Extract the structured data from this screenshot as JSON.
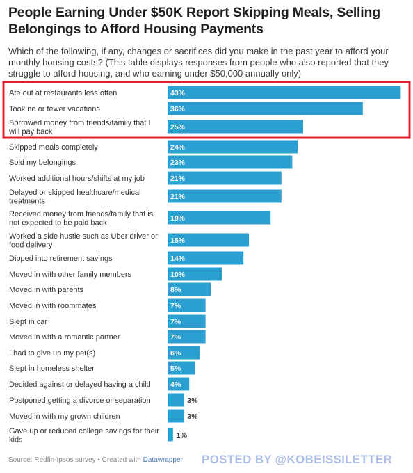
{
  "title": "People Earning Under $50K Report Skipping Meals, Selling Belongings to Afford Housing Payments",
  "subtitle": "Which of the following, if any, changes or sacrifices did you make in the past year to afford your monthly housing costs? (This table displays responses from people who also reported that they struggle to afford housing, and who earning under $50,000 annually only)",
  "footer": {
    "source": "Source: Redfin-Ipsos survey • Created with ",
    "tool": "Datawrapper"
  },
  "watermark": "POSTED BY @KOBEISSILETTER",
  "colors": {
    "bar": "#2b9fd0",
    "highlight_box": "#e0202a",
    "value_inside": "#ffffff",
    "value_outside": "#333333"
  },
  "chart_data": {
    "type": "bar",
    "orientation": "horizontal",
    "value_suffix": "%",
    "highlighted_rows": [
      0,
      1,
      2
    ],
    "categories": [
      [
        "Ate out at restaurants less often"
      ],
      [
        "Took no or fewer vacations"
      ],
      [
        "Borrowed money from friends/family that I",
        "will pay back"
      ],
      [
        "Skipped meals completely"
      ],
      [
        "Sold my belongings"
      ],
      [
        "Worked additional hours/shifts at my job"
      ],
      [
        "Delayed or skipped healthcare/medical",
        "treatments"
      ],
      [
        "Received money from friends/family that is",
        "not expected to be paid back"
      ],
      [
        "Worked a side hustle such as Uber driver or",
        "food delivery"
      ],
      [
        "Dipped into retirement savings"
      ],
      [
        "Moved in with other family members"
      ],
      [
        "Moved in with parents"
      ],
      [
        "Moved in with roommates"
      ],
      [
        "Slept in car"
      ],
      [
        "Moved in with a romantic partner"
      ],
      [
        "I had to give up my pet(s)"
      ],
      [
        "Slept in homeless shelter"
      ],
      [
        "Decided against or delayed having a child"
      ],
      [
        "Postponed getting a divorce or separation"
      ],
      [
        "Moved in with my grown children"
      ],
      [
        "Gave up or reduced college savings for their",
        "kids"
      ]
    ],
    "values": [
      43,
      36,
      25,
      24,
      23,
      21,
      21,
      19,
      15,
      14,
      10,
      8,
      7,
      7,
      7,
      6,
      5,
      4,
      3,
      3,
      1
    ]
  }
}
